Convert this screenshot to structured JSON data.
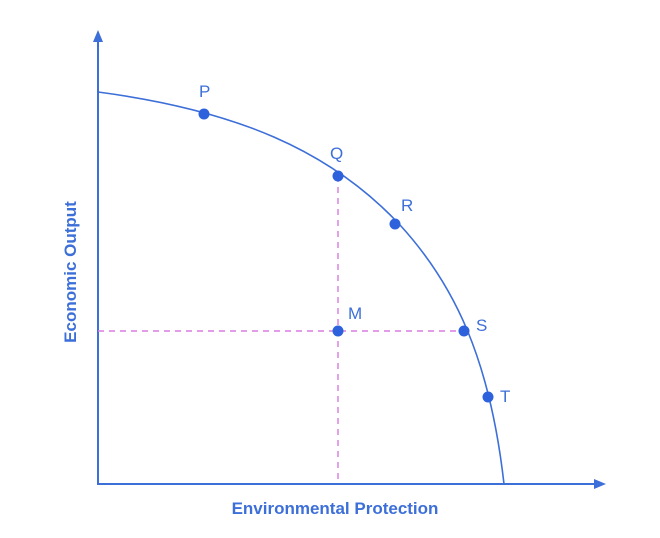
{
  "diagram": {
    "x_axis_label": "Environmental Protection",
    "y_axis_label": "Economic Output",
    "colors": {
      "axis": "#3d6fd8",
      "curve": "#3d6fd8",
      "points": "#2e62dd",
      "guides": "#d97be0"
    },
    "points": [
      {
        "label": "P"
      },
      {
        "label": "Q"
      },
      {
        "label": "R"
      },
      {
        "label": "S"
      },
      {
        "label": "T"
      },
      {
        "label": "M"
      }
    ]
  }
}
